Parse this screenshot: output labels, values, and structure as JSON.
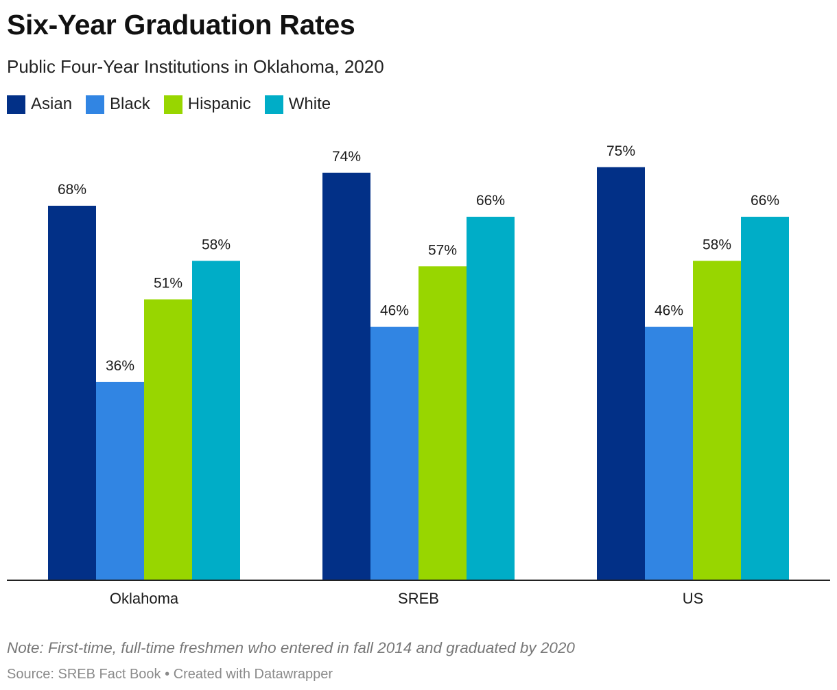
{
  "title": "Six-Year Graduation Rates",
  "subtitle": "Public Four-Year Institutions in Oklahoma, 2020",
  "note": "Note: First-time, full-time freshmen who entered in fall 2014 and graduated by 2020",
  "source": "Source: SREB Fact Book",
  "separator": "•",
  "credit": "Created with Datawrapper",
  "colors": {
    "asian": "#023087",
    "black": "#3185e3",
    "hispanic": "#98d600",
    "white": "#00adc7",
    "axis": "#222222",
    "label": "#1a1a1a"
  },
  "legend": [
    {
      "label": "Asian",
      "color": "#023087"
    },
    {
      "label": "Black",
      "color": "#3185e3"
    },
    {
      "label": "Hispanic",
      "color": "#98d600"
    },
    {
      "label": "White",
      "color": "#00adc7"
    }
  ],
  "chart_data": {
    "type": "bar",
    "title": "Six-Year Graduation Rates",
    "subtitle": "Public Four-Year Institutions in Oklahoma, 2020",
    "categories": [
      "Oklahoma",
      "SREB",
      "US"
    ],
    "series": [
      {
        "name": "Asian",
        "values": [
          68,
          74,
          75
        ]
      },
      {
        "name": "Black",
        "values": [
          36,
          46,
          46
        ]
      },
      {
        "name": "Hispanic",
        "values": [
          51,
          57,
          58
        ]
      },
      {
        "name": "White",
        "values": [
          58,
          66,
          66
        ]
      }
    ],
    "value_suffix": "%",
    "xlabel": "",
    "ylabel": "",
    "ylim": [
      0,
      100
    ],
    "grid": false,
    "legend_position": "top-left"
  }
}
